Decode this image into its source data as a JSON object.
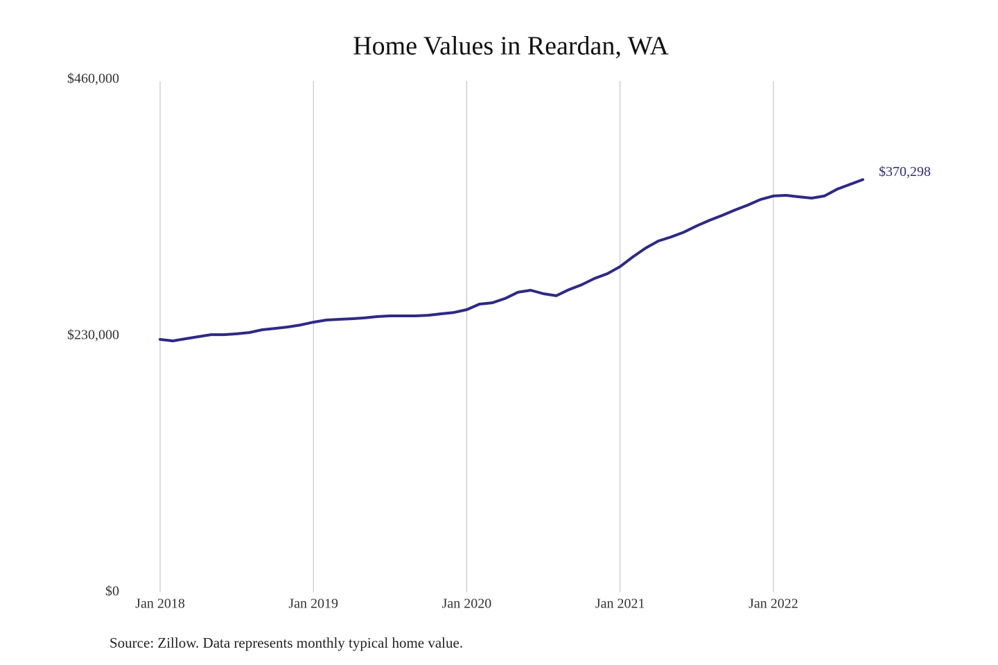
{
  "chart_data": {
    "type": "line",
    "title": "Home Values in Reardan, WA",
    "categories": [
      "Jan 2018",
      null,
      null,
      null,
      null,
      null,
      null,
      null,
      null,
      null,
      null,
      null,
      "Jan 2019",
      null,
      null,
      null,
      null,
      null,
      null,
      null,
      null,
      null,
      null,
      null,
      "Jan 2020",
      null,
      null,
      null,
      null,
      null,
      null,
      null,
      null,
      null,
      null,
      null,
      "Jan 2021",
      null,
      null,
      null,
      null,
      null,
      null,
      null,
      null,
      null,
      null,
      null,
      "Jan 2022",
      null,
      null,
      null,
      null,
      null,
      null,
      null
    ],
    "series": [
      {
        "color": "#2e2a85",
        "values": [
          226900,
          225600,
          227500,
          229400,
          231200,
          231200,
          231900,
          233100,
          235600,
          236800,
          238100,
          239900,
          242400,
          244300,
          244900,
          245500,
          246200,
          247400,
          248000,
          248000,
          248000,
          248600,
          249900,
          251100,
          253600,
          258600,
          259800,
          263600,
          269200,
          271000,
          267900,
          266100,
          271600,
          276000,
          281600,
          285900,
          292200,
          300900,
          308900,
          315200,
          318900,
          323200,
          328800,
          333800,
          338200,
          343100,
          347500,
          352500,
          355600,
          356200,
          354900,
          353700,
          355600,
          361800,
          366100,
          370298
        ]
      }
    ],
    "annotation": "$370,298",
    "ylim": [
      0,
      460000
    ],
    "yticks": [
      {
        "value": 0,
        "label": "$0"
      },
      {
        "value": 230000,
        "label": "$230,000"
      },
      {
        "value": 460000,
        "label": "$460,000"
      }
    ],
    "xgrid": true,
    "source": "Source: Zillow. Data represents monthly typical home value."
  }
}
